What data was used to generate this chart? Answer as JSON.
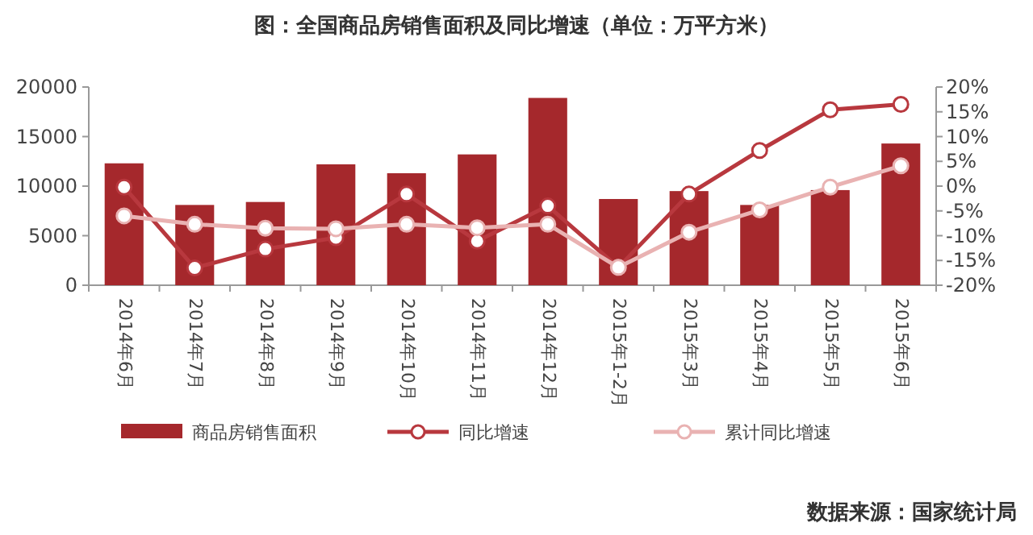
{
  "chart_data": {
    "type": "bar",
    "title": "图：全国商品房销售面积及同比增速（单位：万平方米）",
    "categories": [
      "2014年6月",
      "2014年7月",
      "2014年8月",
      "2014年9月",
      "2014年10月",
      "2014年11月",
      "2014年12月",
      "2015年1-2月",
      "2015年3月",
      "2015年4月",
      "2015年5月",
      "2015年6月"
    ],
    "series": [
      {
        "name": "商品房销售面积",
        "color": "#a5282c",
        "values": [
          12300,
          8100,
          8400,
          12200,
          11300,
          13200,
          18900,
          8700,
          9500,
          8100,
          9600,
          14300
        ]
      },
      {
        "name": "同比增速",
        "type": "line",
        "axis": "y2",
        "color": "#b8383e",
        "values": [
          -0.2,
          -16.5,
          -12.7,
          -10.4,
          -1.6,
          -11.1,
          -4.0,
          -16.4,
          -1.6,
          7.2,
          15.4,
          16.5
        ]
      },
      {
        "name": "累计同比增速",
        "type": "line",
        "axis": "y2",
        "color": "#e9b2b2",
        "values": [
          -6.0,
          -7.7,
          -8.5,
          -8.6,
          -7.7,
          -8.4,
          -7.7,
          -16.4,
          -9.3,
          -4.8,
          -0.2,
          4.1
        ]
      }
    ],
    "ylim": [
      0,
      20000
    ],
    "yticks": [
      0,
      5000,
      10000,
      15000,
      20000
    ],
    "y2lim": [
      -20,
      20
    ],
    "y2ticks": [
      {
        "value": -20,
        "label": "-20%"
      },
      {
        "value": -15,
        "label": "-15%"
      },
      {
        "value": -10,
        "label": "-10%"
      },
      {
        "value": -5,
        "label": "-5%"
      },
      {
        "value": 0,
        "label": "0%"
      },
      {
        "value": 5,
        "label": "5%"
      },
      {
        "value": 10,
        "label": "10%"
      },
      {
        "value": 15,
        "label": "15%"
      },
      {
        "value": 20,
        "label": "20%"
      }
    ],
    "marker": "circle",
    "legend": "bottom",
    "grid": false,
    "annotations": [
      "数据来源：国家统计局"
    ]
  }
}
